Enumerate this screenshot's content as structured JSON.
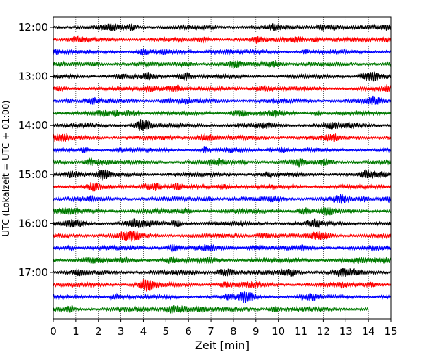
{
  "chart_data": {
    "type": "line",
    "title": "",
    "xlabel": "Zeit  [min]",
    "ylabel": "UTC (Lokalzeit = UTC + 01:00)",
    "xlim": [
      0,
      15
    ],
    "x_ticks": [
      "0",
      "1",
      "2",
      "3",
      "4",
      "5",
      "6",
      "7",
      "8",
      "9",
      "10",
      "11",
      "12",
      "13",
      "14",
      "15"
    ],
    "y_ticks": [
      "12:00",
      "13:00",
      "14:00",
      "15:00",
      "16:00",
      "17:00"
    ],
    "grid": "vertical dotted",
    "trace_interval_min": 15,
    "trace_colors": [
      "#000000",
      "#ff0000",
      "#0000ff",
      "#007a00"
    ],
    "series": [
      {
        "start": "12:00",
        "duration_min": 15
      },
      {
        "start": "12:15",
        "duration_min": 15
      },
      {
        "start": "12:30",
        "duration_min": 15
      },
      {
        "start": "12:45",
        "duration_min": 15
      },
      {
        "start": "13:00",
        "duration_min": 15
      },
      {
        "start": "13:15",
        "duration_min": 15
      },
      {
        "start": "13:30",
        "duration_min": 15
      },
      {
        "start": "13:45",
        "duration_min": 15
      },
      {
        "start": "14:00",
        "duration_min": 15
      },
      {
        "start": "14:15",
        "duration_min": 15
      },
      {
        "start": "14:30",
        "duration_min": 15
      },
      {
        "start": "14:45",
        "duration_min": 15
      },
      {
        "start": "15:00",
        "duration_min": 15
      },
      {
        "start": "15:15",
        "duration_min": 15
      },
      {
        "start": "15:30",
        "duration_min": 15
      },
      {
        "start": "15:45",
        "duration_min": 15
      },
      {
        "start": "16:00",
        "duration_min": 15
      },
      {
        "start": "16:15",
        "duration_min": 15
      },
      {
        "start": "16:30",
        "duration_min": 15
      },
      {
        "start": "16:45",
        "duration_min": 15
      },
      {
        "start": "17:00",
        "duration_min": 15
      },
      {
        "start": "17:15",
        "duration_min": 15
      },
      {
        "start": "17:30",
        "duration_min": 15
      },
      {
        "start": "17:45",
        "duration_min": 14
      }
    ]
  }
}
